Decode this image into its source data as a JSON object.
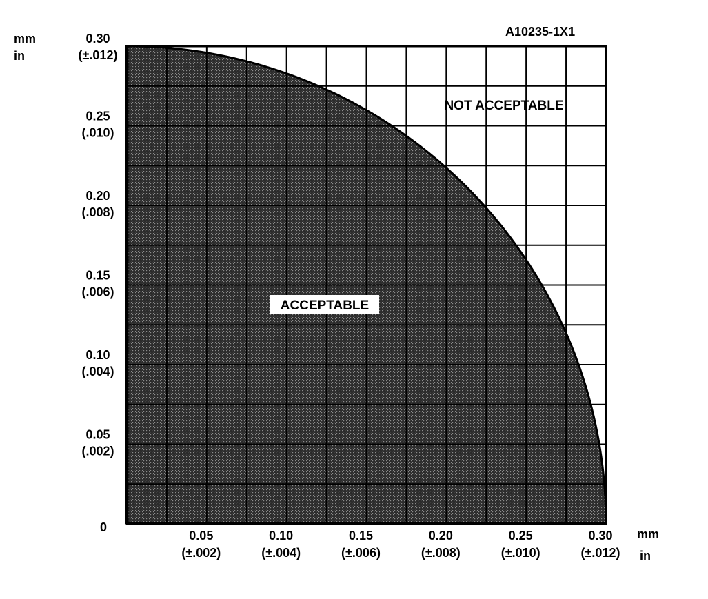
{
  "figure_id": "A10235-1X1",
  "units": {
    "y_mm": "mm",
    "y_in": "in",
    "x_mm": "mm",
    "x_in": "in"
  },
  "regions": {
    "acceptable": "ACCEPTABLE",
    "not_acceptable": "NOT ACCEPTABLE"
  },
  "colors": {
    "ink": "#000000",
    "paper": "#ffffff",
    "shade": "#2b2b2b"
  },
  "chart_data": {
    "type": "area",
    "title": "",
    "xlabel": "",
    "ylabel": "",
    "xlim": [
      0,
      0.3
    ],
    "ylim": [
      0,
      0.3
    ],
    "grid": true,
    "zero_label": "0",
    "x_ticks": [
      {
        "mm": "0.05",
        "in": "(±.002)"
      },
      {
        "mm": "0.10",
        "in": "(±.004)"
      },
      {
        "mm": "0.15",
        "in": "(±.006)"
      },
      {
        "mm": "0.20",
        "in": "(±.008)"
      },
      {
        "mm": "0.25",
        "in": "(±.010)"
      },
      {
        "mm": "0.30",
        "in": "(±.012)"
      }
    ],
    "y_ticks": [
      {
        "mm": "0.05",
        "in": "(.002)"
      },
      {
        "mm": "0.10",
        "in": "(.004)"
      },
      {
        "mm": "0.15",
        "in": "(.006)"
      },
      {
        "mm": "0.20",
        "in": "(.008)"
      },
      {
        "mm": "0.25",
        "in": "(.010)"
      },
      {
        "mm": "0.30",
        "in": "(±.012)"
      }
    ],
    "boundary": {
      "shape": "quarter-circle",
      "radius_mm": 0.3
    },
    "x": [
      0,
      0.05,
      0.1,
      0.15,
      0.2,
      0.25,
      0.28,
      0.3
    ],
    "series": [
      {
        "values": [
          0.3,
          0.296,
          0.283,
          0.26,
          0.224,
          0.166,
          0.108,
          0
        ]
      }
    ]
  }
}
